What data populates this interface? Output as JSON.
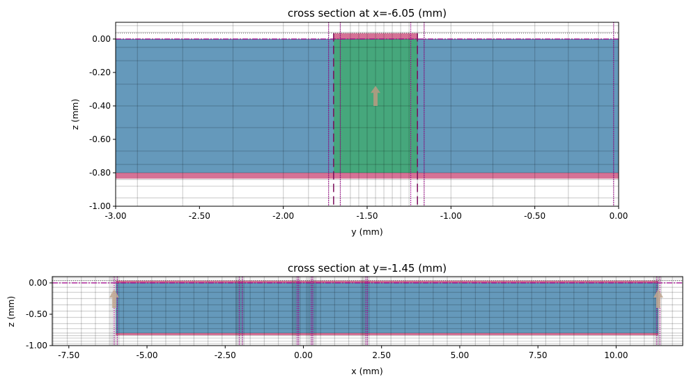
{
  "chart_data": [
    {
      "type": "cross-section",
      "title": "cross section at x=-6.05 (mm)",
      "xlabel": "y (mm)",
      "ylabel": "z (mm)",
      "xlim": [
        -3.0,
        0.0
      ],
      "ylim": [
        -1.0,
        0.1
      ],
      "xticks": [
        "-3.00",
        "-2.50",
        "-2.00",
        "-1.50",
        "-1.00",
        "-0.50",
        "0.00"
      ],
      "yticks": [
        "-1.00",
        "-0.80",
        "-0.60",
        "-0.40",
        "-0.20",
        "0.00"
      ],
      "grid_x": [
        -2.87,
        -2.6,
        -2.3,
        -2.0,
        -1.85,
        -1.73,
        -1.66,
        -1.6,
        -1.55,
        -1.5,
        -1.45,
        -1.4,
        -1.35,
        -1.3,
        -1.25,
        -1.2,
        -1.16,
        -1.0,
        -0.75,
        -0.5,
        -0.3,
        -0.12,
        -0.03
      ],
      "grid_z": [
        0.08,
        0.04,
        0.0,
        -0.05,
        -0.13,
        -0.27,
        -0.4,
        -0.53,
        -0.67,
        -0.75,
        -0.8,
        -0.84,
        -0.88,
        -0.95
      ],
      "structures": [
        {
          "name": "substrate",
          "x": [
            -3.0,
            0.0
          ],
          "z": [
            -0.8,
            0.0
          ],
          "color": "#3a7ca8"
        },
        {
          "name": "ground",
          "x": [
            -3.0,
            0.0
          ],
          "z": [
            -0.835,
            -0.8
          ],
          "color": "#c94a78"
        },
        {
          "name": "port",
          "x": [
            -1.7,
            -1.2
          ],
          "z": [
            -0.8,
            0.0
          ],
          "color": "#3daa6a"
        },
        {
          "name": "strip",
          "x": [
            -1.7,
            -1.2
          ],
          "z": [
            0.0,
            0.035
          ],
          "color": "#c94a78"
        }
      ],
      "boundary_lines_x": [
        -1.73,
        -1.66,
        -1.24,
        -1.16,
        -0.03
      ],
      "arrow": {
        "x": -1.45,
        "z_from": -0.4,
        "z_to": -0.28,
        "color": "#a89c80"
      }
    },
    {
      "type": "cross-section",
      "title": "cross section at y=-1.45 (mm)",
      "xlabel": "x (mm)",
      "ylabel": "z (mm)",
      "xlim": [
        -8.03,
        12.13
      ],
      "ylim": [
        -1.0,
        0.1
      ],
      "xticks": [
        "-7.50",
        "-5.00",
        "-2.50",
        "0.00",
        "2.50",
        "5.00",
        "7.50",
        "10.00"
      ],
      "yticks": [
        "-1.00",
        "-0.50",
        "0.00"
      ],
      "structures": [
        {
          "name": "substrate",
          "x": [
            -6.0,
            11.35
          ],
          "z": [
            -0.8,
            0.0
          ],
          "color": "#3a7ca8"
        },
        {
          "name": "ground",
          "x": [
            -6.0,
            11.35
          ],
          "z": [
            -0.835,
            -0.8
          ],
          "color": "#c94a78"
        },
        {
          "name": "strip",
          "x": [
            -6.0,
            11.35
          ],
          "z": [
            0.0,
            0.035
          ],
          "color": "#c94a78"
        }
      ],
      "boundary_lines_x": [
        -6.05,
        -5.95,
        -2.05,
        -1.95,
        -0.2,
        -0.15,
        0.25,
        0.3,
        2.0,
        2.05,
        11.3,
        11.4
      ],
      "arrows": [
        {
          "x": -6.05,
          "z_from": -0.4,
          "z_to": -0.1
        },
        {
          "x": 11.35,
          "z_from": -0.4,
          "z_to": -0.1
        }
      ]
    }
  ]
}
